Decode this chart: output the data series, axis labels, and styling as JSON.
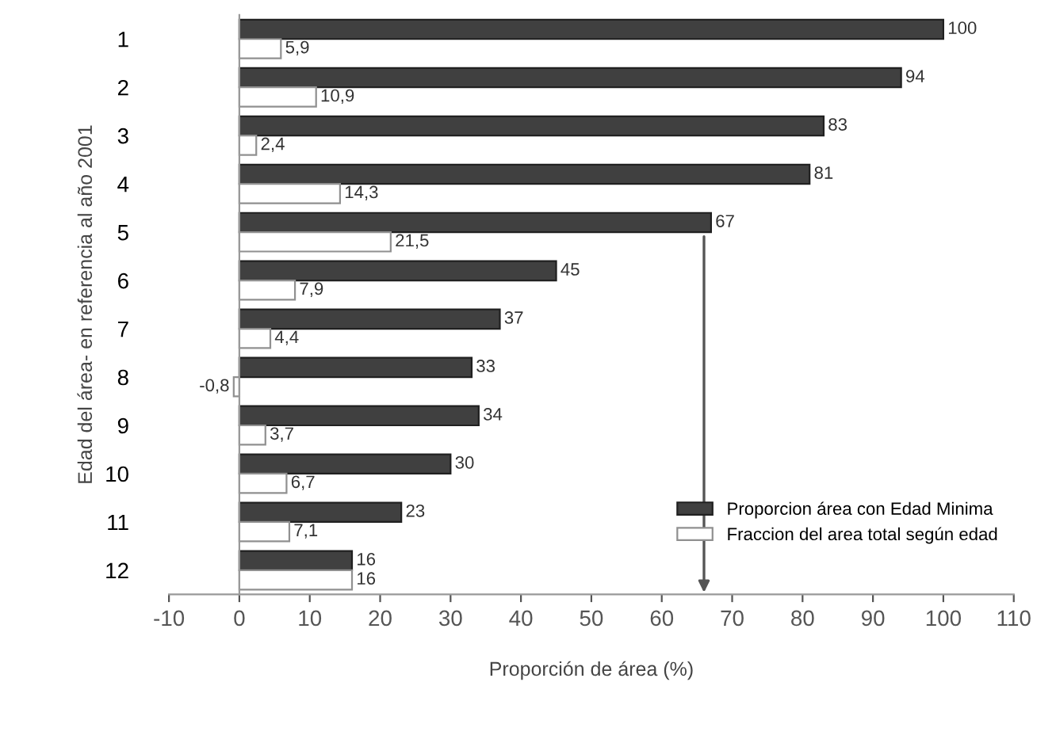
{
  "chart_data": {
    "type": "bar",
    "orientation": "horizontal",
    "xlabel": "Proporción de área (%)",
    "ylabel": "Edad del área- en referencia al año 2001",
    "categories": [
      "1",
      "2",
      "3",
      "4",
      "5",
      "6",
      "7",
      "8",
      "9",
      "10",
      "11",
      "12"
    ],
    "series": [
      {
        "name": "Proporcion área con Edad Minima",
        "color": "#404040",
        "values": [
          100,
          94,
          83,
          81,
          67,
          45,
          37,
          33,
          34,
          30,
          23,
          16
        ],
        "value_labels": [
          "100",
          "94",
          "83",
          "81",
          "67",
          "45",
          "37",
          "33",
          "34",
          "30",
          "23",
          "16"
        ]
      },
      {
        "name": "Fraccion del area total según edad",
        "color": "#ffffff",
        "values": [
          5.9,
          10.9,
          2.4,
          14.3,
          21.5,
          7.9,
          4.4,
          -0.8,
          3.7,
          6.7,
          7.1,
          16
        ],
        "value_labels": [
          "5,9",
          "10,9",
          "2,4",
          "14,3",
          "21,5",
          "7,9",
          "4,4",
          "-0,8",
          "3,7",
          "6,7",
          "7,1",
          "16"
        ]
      }
    ],
    "xlim": [
      -10,
      110
    ],
    "xticks": [
      -10,
      0,
      10,
      20,
      30,
      40,
      50,
      60,
      70,
      80,
      90,
      100,
      110
    ],
    "legend": "bottom right"
  }
}
